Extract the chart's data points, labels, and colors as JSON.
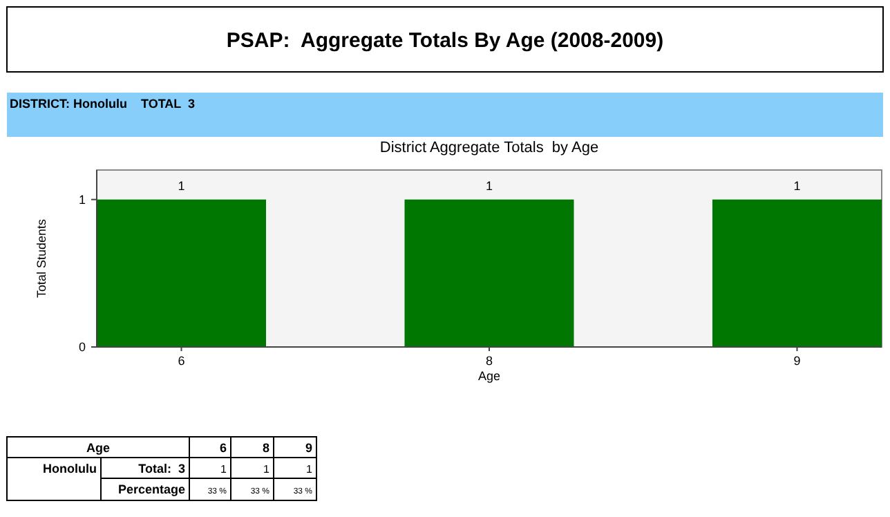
{
  "chart_data": {
    "type": "bar",
    "title": "PSAP:  Aggregate Totals By Age (2008-2009)",
    "subtitle": "District Aggregate Totals  by Age",
    "xlabel": "Age",
    "ylabel": "Total Students",
    "categories": [
      "6",
      "8",
      "9"
    ],
    "values": [
      1,
      1,
      1
    ],
    "color": "#007700",
    "ylim": [
      0,
      1.2
    ],
    "yticks": [
      0,
      1
    ],
    "data_labels": true,
    "annotations": [
      "DISTRICT: Honolulu    TOTAL  3",
      "Age",
      "Honolulu",
      "Total:  3",
      "Percentage",
      "33 %",
      "33 %",
      "33 %",
      "1",
      "1",
      "1"
    ]
  }
}
